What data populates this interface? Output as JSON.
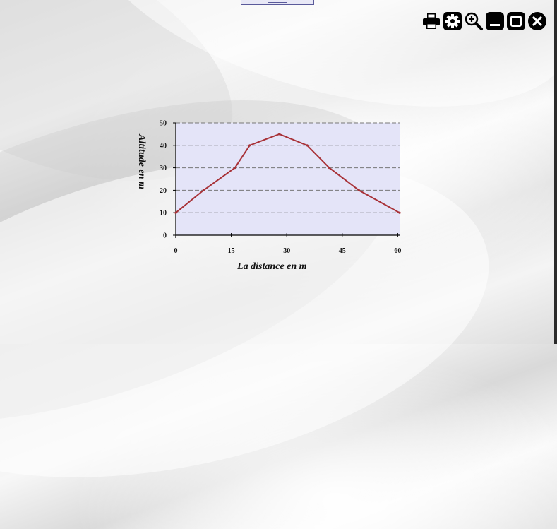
{
  "toolbar": {
    "icons": [
      "printer-icon",
      "gear-icon",
      "zoom-in-icon",
      "minimize-icon",
      "maximize-icon",
      "close-icon"
    ]
  },
  "chart_data": {
    "type": "line",
    "x": [
      0,
      7.5,
      16,
      20,
      28,
      35.5,
      41.5,
      49.5,
      60.5
    ],
    "series": [
      {
        "values": [
          10,
          20,
          30,
          40,
          45,
          40,
          30,
          20,
          10
        ],
        "color": "#a83238"
      }
    ],
    "title": "",
    "xlabel": "La distance en m",
    "ylabel": "Altitude en m",
    "xlim": [
      0,
      60.5
    ],
    "ylim": [
      0,
      50
    ],
    "xticks": [
      0,
      15,
      30,
      45,
      60
    ],
    "yticks": [
      0,
      10,
      20,
      30,
      40,
      50
    ],
    "grid": "horizontal-dashed",
    "plot_background": "#e4e4f8"
  }
}
